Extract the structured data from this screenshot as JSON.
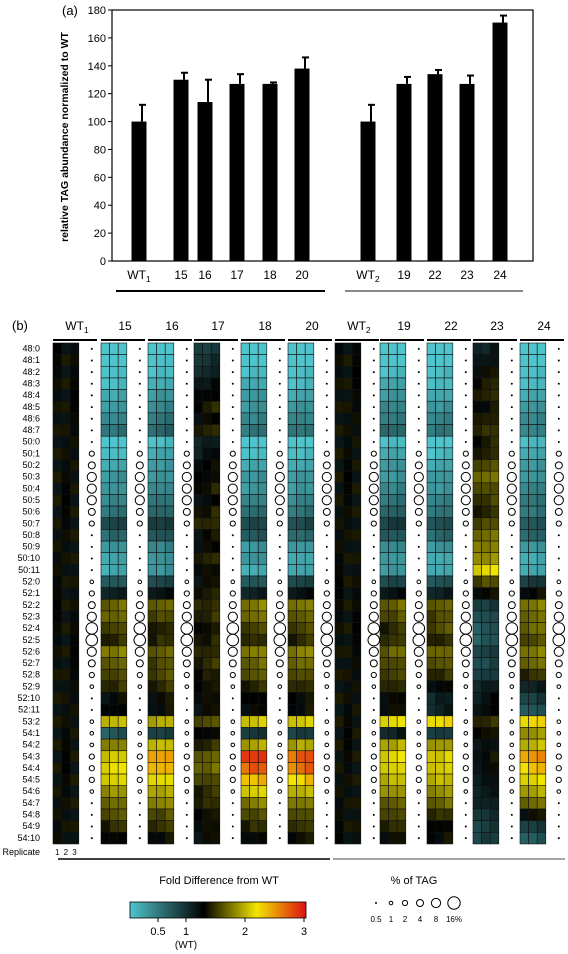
{
  "chart_data": [
    {
      "type": "bar",
      "panel_label": "(a)",
      "ylabel": "relative TAG abundance normalized to WT",
      "ylim": [
        0,
        180
      ],
      "yticks": [
        0,
        20,
        40,
        60,
        80,
        100,
        120,
        140,
        160,
        180
      ],
      "categories": [
        "WT1",
        "15",
        "16",
        "17",
        "18",
        "20",
        "WT2",
        "19",
        "22",
        "23",
        "24"
      ],
      "category_display": [
        {
          "main": "WT",
          "sub": "1"
        },
        {
          "main": "15",
          "sub": ""
        },
        {
          "main": "16",
          "sub": ""
        },
        {
          "main": "17",
          "sub": ""
        },
        {
          "main": "18",
          "sub": ""
        },
        {
          "main": "20",
          "sub": ""
        },
        {
          "main": "WT",
          "sub": "2"
        },
        {
          "main": "19",
          "sub": ""
        },
        {
          "main": "22",
          "sub": ""
        },
        {
          "main": "23",
          "sub": ""
        },
        {
          "main": "24",
          "sub": ""
        }
      ],
      "values": [
        100,
        130,
        114,
        127,
        127,
        138,
        100,
        127,
        134,
        127,
        171
      ],
      "errors": [
        12,
        5,
        16,
        7,
        1,
        8,
        12,
        5,
        3,
        6,
        5
      ],
      "groups": [
        {
          "start": 0,
          "end": 5,
          "color": "#000000"
        },
        {
          "start": 6,
          "end": 10,
          "color": "#888888"
        }
      ],
      "bar_color": "#000000"
    },
    {
      "type": "heatmap",
      "panel_label": "(b)",
      "columns": [
        {
          "main": "WT",
          "sub": "1"
        },
        {
          "main": "15",
          "sub": ""
        },
        {
          "main": "16",
          "sub": ""
        },
        {
          "main": "17",
          "sub": ""
        },
        {
          "main": "18",
          "sub": ""
        },
        {
          "main": "20",
          "sub": ""
        },
        {
          "main": "WT",
          "sub": "2"
        },
        {
          "main": "19",
          "sub": ""
        },
        {
          "main": "22",
          "sub": ""
        },
        {
          "main": "23",
          "sub": ""
        },
        {
          "main": "24",
          "sub": ""
        }
      ],
      "species": [
        "48:0",
        "48:1",
        "48:2",
        "48:3",
        "48:4",
        "48:5",
        "48:6",
        "48:7",
        "50:0",
        "50:1",
        "50:2",
        "50:3",
        "50:4",
        "50:5",
        "50:6",
        "50:7",
        "50:8",
        "50:9",
        "50:10",
        "50:11",
        "52:0",
        "52:1",
        "52:2",
        "52:3",
        "52:4",
        "52:5",
        "52:6",
        "52:7",
        "52:8",
        "52:9",
        "52:10",
        "52:11",
        "53:2",
        "54:1",
        "54:2",
        "54:3",
        "54:4",
        "54:5",
        "54:6",
        "54:7",
        "54:8",
        "54:9",
        "54:10"
      ],
      "replicate_label": "Replicate",
      "replicates": [
        "1",
        "2",
        "3"
      ],
      "fold_colorbar": {
        "title": "Fold Difference from WT",
        "ticks": [
          "0.5",
          "1",
          "2",
          "3"
        ],
        "wt_note": "(WT)",
        "colors": [
          "#4fc4cc",
          "#000000",
          "#f2e600",
          "#dd1111"
        ]
      },
      "percent_tag": {
        "title": "% of TAG",
        "labels": [
          "0.5",
          "1",
          "2",
          "4",
          "8",
          "16%"
        ]
      },
      "pct_by_row": [
        0.5,
        0.5,
        0.5,
        0.5,
        0.5,
        0.5,
        0.5,
        0.5,
        0.5,
        2,
        4,
        8,
        8,
        8,
        4,
        2,
        0.5,
        0.5,
        0.5,
        0.5,
        1,
        2,
        4,
        8,
        16,
        16,
        8,
        4,
        2,
        1,
        0.5,
        0.5,
        1,
        1,
        1,
        2,
        2,
        2,
        1,
        0.5,
        0.5,
        0.5,
        0.5
      ],
      "fold_by_column": [
        [
          1,
          1,
          1,
          1,
          1,
          1,
          1,
          1,
          1,
          1,
          1,
          1,
          1,
          1,
          1,
          1,
          1,
          1,
          1,
          1,
          1,
          1,
          1,
          1,
          1,
          1,
          1,
          1,
          1,
          1,
          1,
          1,
          1,
          1,
          1,
          1,
          1,
          1,
          1,
          1,
          1,
          1,
          1
        ],
        [
          0.35,
          0.35,
          0.4,
          0.4,
          0.45,
          0.5,
          0.55,
          0.6,
          0.35,
          0.4,
          0.45,
          0.5,
          0.5,
          0.55,
          0.6,
          0.75,
          0.65,
          0.5,
          0.45,
          0.45,
          0.7,
          0.9,
          1.3,
          1.3,
          1.2,
          1.1,
          1.4,
          1.3,
          1.2,
          1.1,
          1.0,
          1.0,
          1.7,
          0.7,
          1.4,
          1.8,
          1.9,
          1.8,
          1.5,
          1.3,
          1.2,
          1.1,
          1.0
        ],
        [
          0.35,
          0.4,
          0.4,
          0.45,
          0.5,
          0.55,
          0.6,
          0.65,
          0.4,
          0.45,
          0.5,
          0.5,
          0.55,
          0.6,
          0.65,
          0.8,
          0.7,
          0.55,
          0.5,
          0.5,
          0.75,
          0.95,
          1.3,
          1.2,
          1.1,
          1.1,
          1.3,
          1.2,
          1.2,
          1.1,
          1.0,
          1.0,
          1.6,
          0.8,
          1.7,
          2.3,
          2.2,
          1.9,
          1.6,
          1.4,
          1.2,
          1.1,
          1.0
        ],
        [
          0.8,
          0.85,
          0.9,
          0.95,
          1.0,
          1.05,
          1.0,
          1.05,
          0.9,
          0.95,
          1.0,
          1.0,
          1.05,
          1.0,
          1.05,
          1.1,
          1.0,
          1.0,
          1.05,
          1.0,
          1.0,
          1.05,
          1.1,
          1.1,
          1.05,
          1.05,
          1.1,
          1.1,
          1.05,
          1.0,
          1.0,
          1.0,
          1.2,
          1.0,
          1.1,
          1.3,
          1.3,
          1.2,
          1.1,
          1.1,
          1.0,
          1.0,
          1.0
        ],
        [
          0.35,
          0.35,
          0.4,
          0.45,
          0.5,
          0.5,
          0.55,
          0.6,
          0.35,
          0.4,
          0.45,
          0.5,
          0.5,
          0.55,
          0.65,
          0.75,
          0.7,
          0.5,
          0.5,
          0.45,
          0.7,
          0.9,
          1.4,
          1.3,
          1.2,
          1.1,
          1.4,
          1.3,
          1.2,
          1.1,
          1.0,
          1.0,
          1.8,
          0.8,
          1.6,
          2.8,
          2.6,
          2.2,
          1.8,
          1.4,
          1.2,
          1.1,
          1.0
        ],
        [
          0.35,
          0.35,
          0.4,
          0.4,
          0.45,
          0.5,
          0.55,
          0.6,
          0.35,
          0.4,
          0.45,
          0.5,
          0.5,
          0.55,
          0.6,
          0.75,
          0.65,
          0.5,
          0.45,
          0.45,
          0.75,
          0.95,
          1.4,
          1.3,
          1.2,
          1.1,
          1.4,
          1.3,
          1.2,
          1.1,
          1.0,
          1.0,
          1.8,
          0.8,
          1.6,
          2.6,
          2.5,
          2.1,
          1.7,
          1.4,
          1.2,
          1.1,
          1.0
        ],
        [
          1,
          1,
          1,
          1,
          1,
          1,
          1,
          1,
          1,
          1,
          1,
          1,
          1,
          1,
          1,
          1,
          1,
          1,
          1,
          1,
          1,
          1,
          1,
          1,
          1,
          1,
          1,
          1,
          1,
          1,
          1,
          1,
          1,
          1,
          1,
          1,
          1,
          1,
          1,
          1,
          1,
          1,
          1
        ],
        [
          0.35,
          0.35,
          0.4,
          0.45,
          0.5,
          0.55,
          0.6,
          0.65,
          0.4,
          0.45,
          0.5,
          0.5,
          0.55,
          0.6,
          0.65,
          0.8,
          0.7,
          0.55,
          0.5,
          0.5,
          0.75,
          0.95,
          1.3,
          1.2,
          1.1,
          1.1,
          1.3,
          1.2,
          1.2,
          1.1,
          1.0,
          1.0,
          1.9,
          0.9,
          1.6,
          1.9,
          1.8,
          1.7,
          1.5,
          1.3,
          1.2,
          1.1,
          1.0
        ],
        [
          0.35,
          0.35,
          0.4,
          0.4,
          0.45,
          0.5,
          0.55,
          0.6,
          0.35,
          0.4,
          0.45,
          0.5,
          0.5,
          0.55,
          0.6,
          0.75,
          0.65,
          0.5,
          0.45,
          0.45,
          0.7,
          0.9,
          1.3,
          1.2,
          1.2,
          1.1,
          1.3,
          1.2,
          1.1,
          1.0,
          0.9,
          0.9,
          2.0,
          0.8,
          1.5,
          1.8,
          1.8,
          1.7,
          1.5,
          1.3,
          1.1,
          1.0,
          1.0
        ],
        [
          0.9,
          0.95,
          1.0,
          1.05,
          1.1,
          1.0,
          1.05,
          1.1,
          1.05,
          1.1,
          1.2,
          1.3,
          1.2,
          1.15,
          1.1,
          1.2,
          1.3,
          1.4,
          1.5,
          1.9,
          1.2,
          1.0,
          0.8,
          0.75,
          0.7,
          0.7,
          0.8,
          0.75,
          0.8,
          0.9,
          0.95,
          1.0,
          1.1,
          1.0,
          0.95,
          1.0,
          1.0,
          0.95,
          0.9,
          0.9,
          0.85,
          0.8,
          0.8
        ],
        [
          0.35,
          0.35,
          0.4,
          0.4,
          0.45,
          0.5,
          0.55,
          0.55,
          0.4,
          0.45,
          0.5,
          0.5,
          0.55,
          0.6,
          0.6,
          0.7,
          0.65,
          0.5,
          0.45,
          0.45,
          0.8,
          1.0,
          1.4,
          1.3,
          1.3,
          1.2,
          1.4,
          1.3,
          1.1,
          0.9,
          0.8,
          0.7,
          2.0,
          1.5,
          1.7,
          2.3,
          2.1,
          1.9,
          1.6,
          1.3,
          1.0,
          0.8,
          0.7
        ]
      ]
    }
  ]
}
